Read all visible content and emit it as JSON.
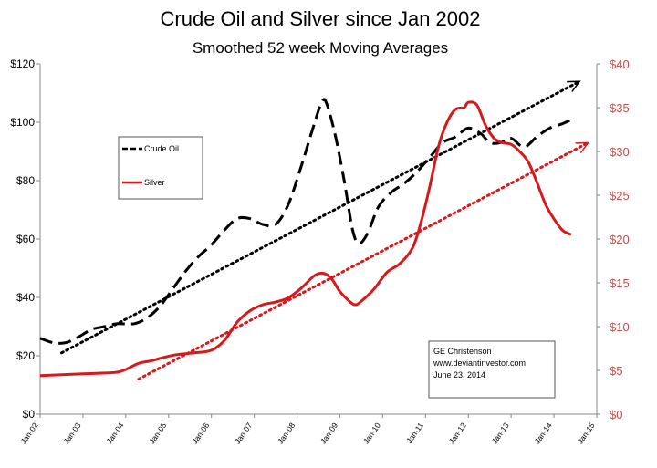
{
  "chart_data": {
    "type": "line",
    "title": "Crude Oil and Silver since Jan 2002",
    "subtitle": "Smoothed 52 week Moving Averages",
    "categories": [
      "Jan-02",
      "Jan-03",
      "Jan-04",
      "Jan-05",
      "Jan-06",
      "Jan-07",
      "Jan-08",
      "Jan-09",
      "Jan-10",
      "Jan-11",
      "Jan-12",
      "Jan-13",
      "Jan-14",
      "Jan-15"
    ],
    "x_range": [
      2002,
      2015
    ],
    "left_axis": {
      "ticks": [
        "$0",
        "$20",
        "$40",
        "$60",
        "$80",
        "$100",
        "$120"
      ],
      "range": [
        0,
        120
      ]
    },
    "right_axis": {
      "ticks": [
        "$0",
        "$5",
        "$10",
        "$15",
        "$20",
        "$25",
        "$30",
        "$35",
        "$40"
      ],
      "range": [
        0,
        40
      ]
    },
    "series": [
      {
        "name": "Crude Oil",
        "axis": "left",
        "color": "#000000",
        "style": "dashed",
        "points": [
          [
            2002.0,
            26
          ],
          [
            2002.3,
            24.5
          ],
          [
            2002.6,
            24.5
          ],
          [
            2002.9,
            26.5
          ],
          [
            2003.2,
            29
          ],
          [
            2003.5,
            30
          ],
          [
            2003.8,
            31
          ],
          [
            2004.2,
            31
          ],
          [
            2004.5,
            33
          ],
          [
            2004.8,
            37
          ],
          [
            2005.1,
            43
          ],
          [
            2005.4,
            49
          ],
          [
            2005.7,
            54
          ],
          [
            2006.0,
            58
          ],
          [
            2006.3,
            63
          ],
          [
            2006.6,
            67
          ],
          [
            2006.9,
            67
          ],
          [
            2007.2,
            65
          ],
          [
            2007.5,
            65
          ],
          [
            2007.8,
            72
          ],
          [
            2008.1,
            85
          ],
          [
            2008.35,
            97
          ],
          [
            2008.58,
            107
          ],
          [
            2008.7,
            106
          ],
          [
            2008.9,
            95
          ],
          [
            2009.1,
            80
          ],
          [
            2009.3,
            63
          ],
          [
            2009.45,
            58.5
          ],
          [
            2009.65,
            62
          ],
          [
            2009.9,
            71
          ],
          [
            2010.2,
            76
          ],
          [
            2010.5,
            79
          ],
          [
            2010.8,
            83
          ],
          [
            2011.1,
            88
          ],
          [
            2011.4,
            93
          ],
          [
            2011.7,
            95
          ],
          [
            2012.0,
            98
          ],
          [
            2012.3,
            96
          ],
          [
            2012.5,
            93
          ],
          [
            2012.75,
            93
          ],
          [
            2013.0,
            94.5
          ],
          [
            2013.3,
            91.5
          ],
          [
            2013.6,
            95
          ],
          [
            2013.9,
            98
          ],
          [
            2014.2,
            99.5
          ],
          [
            2014.5,
            101.5
          ]
        ]
      },
      {
        "name": "Silver",
        "axis": "right",
        "color": "#d7191c",
        "style": "solid",
        "points": [
          [
            2002.0,
            4.4
          ],
          [
            2002.5,
            4.5
          ],
          [
            2003.0,
            4.6
          ],
          [
            2003.5,
            4.7
          ],
          [
            2003.8,
            4.8
          ],
          [
            2004.0,
            5.1
          ],
          [
            2004.3,
            5.8
          ],
          [
            2004.6,
            6.1
          ],
          [
            2004.9,
            6.5
          ],
          [
            2005.2,
            6.8
          ],
          [
            2005.6,
            7.0
          ],
          [
            2006.0,
            7.3
          ],
          [
            2006.3,
            8.4
          ],
          [
            2006.6,
            10.5
          ],
          [
            2006.9,
            11.8
          ],
          [
            2007.2,
            12.5
          ],
          [
            2007.5,
            12.8
          ],
          [
            2007.8,
            13.3
          ],
          [
            2008.1,
            14.4
          ],
          [
            2008.4,
            15.8
          ],
          [
            2008.6,
            16.1
          ],
          [
            2008.8,
            15.5
          ],
          [
            2009.0,
            14.0
          ],
          [
            2009.2,
            13.0
          ],
          [
            2009.35,
            12.5
          ],
          [
            2009.5,
            12.9
          ],
          [
            2009.8,
            14.3
          ],
          [
            2010.1,
            16.2
          ],
          [
            2010.4,
            17.2
          ],
          [
            2010.7,
            19.0
          ],
          [
            2010.9,
            22.0
          ],
          [
            2011.1,
            26.0
          ],
          [
            2011.3,
            30.5
          ],
          [
            2011.5,
            33.3
          ],
          [
            2011.7,
            34.8
          ],
          [
            2011.9,
            35.0
          ],
          [
            2012.0,
            35.6
          ],
          [
            2012.2,
            35.3
          ],
          [
            2012.4,
            33.0
          ],
          [
            2012.6,
            31.5
          ],
          [
            2012.8,
            31.0
          ],
          [
            2013.0,
            30.8
          ],
          [
            2013.2,
            30.0
          ],
          [
            2013.4,
            28.8
          ],
          [
            2013.6,
            26.5
          ],
          [
            2013.8,
            24.0
          ],
          [
            2014.0,
            22.3
          ],
          [
            2014.2,
            21.0
          ],
          [
            2014.4,
            20.5
          ]
        ]
      }
    ],
    "trendlines": [
      {
        "axis": "left",
        "color": "#000000",
        "style": "dotted",
        "from": [
          2002.5,
          21
        ],
        "to": [
          2014.6,
          114
        ],
        "arrowhead": true
      },
      {
        "axis": "right",
        "color": "#d7191c",
        "style": "dotted",
        "from": [
          2004.3,
          4
        ],
        "to": [
          2014.8,
          31
        ],
        "arrowhead": true
      }
    ],
    "legend": {
      "position": "upper-left",
      "items": [
        {
          "label": "Crude Oil",
          "color": "#000000",
          "style": "dashed"
        },
        {
          "label": "Silver",
          "color": "#d7191c",
          "style": "solid"
        }
      ]
    },
    "annotation": {
      "lines": [
        "GE Christenson",
        "www.deviantinvestor.com",
        "June 23, 2014"
      ]
    },
    "colors": {
      "left_axis": "#000000",
      "right_axis": "#c0504d",
      "oil": "#000000",
      "silver": "#d7191c"
    }
  }
}
